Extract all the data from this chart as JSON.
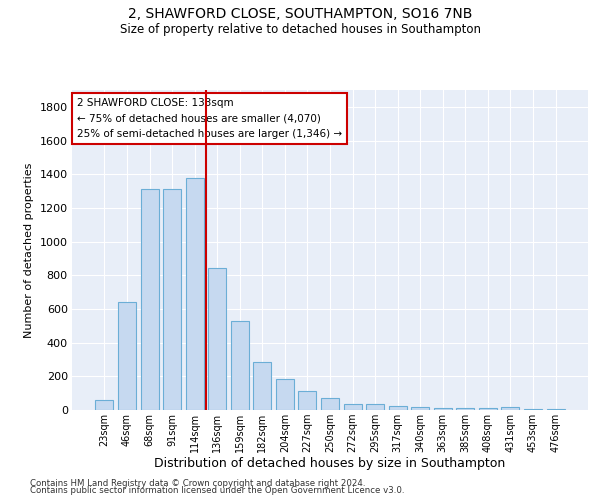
{
  "title": "2, SHAWFORD CLOSE, SOUTHAMPTON, SO16 7NB",
  "subtitle": "Size of property relative to detached houses in Southampton",
  "xlabel": "Distribution of detached houses by size in Southampton",
  "ylabel": "Number of detached properties",
  "bar_color": "#c6d9f0",
  "bar_edge_color": "#6baed6",
  "background_color": "#e8eef8",
  "grid_color": "#ffffff",
  "annotation_box_color": "#cc0000",
  "vline_color": "#cc0000",
  "annotation_line1": "2 SHAWFORD CLOSE: 133sqm",
  "annotation_line2": "← 75% of detached houses are smaller (4,070)",
  "annotation_line3": "25% of semi-detached houses are larger (1,346) →",
  "footer1": "Contains HM Land Registry data © Crown copyright and database right 2024.",
  "footer2": "Contains public sector information licensed under the Open Government Licence v3.0.",
  "categories": [
    "23sqm",
    "46sqm",
    "68sqm",
    "91sqm",
    "114sqm",
    "136sqm",
    "159sqm",
    "182sqm",
    "204sqm",
    "227sqm",
    "250sqm",
    "272sqm",
    "295sqm",
    "317sqm",
    "340sqm",
    "363sqm",
    "385sqm",
    "408sqm",
    "431sqm",
    "453sqm",
    "476sqm"
  ],
  "values": [
    60,
    640,
    1310,
    1310,
    1375,
    845,
    530,
    283,
    185,
    115,
    70,
    38,
    38,
    25,
    18,
    10,
    10,
    10,
    18,
    5,
    5
  ],
  "vline_x": 4.5,
  "ylim": [
    0,
    1900
  ],
  "yticks": [
    0,
    200,
    400,
    600,
    800,
    1000,
    1200,
    1400,
    1600,
    1800
  ]
}
